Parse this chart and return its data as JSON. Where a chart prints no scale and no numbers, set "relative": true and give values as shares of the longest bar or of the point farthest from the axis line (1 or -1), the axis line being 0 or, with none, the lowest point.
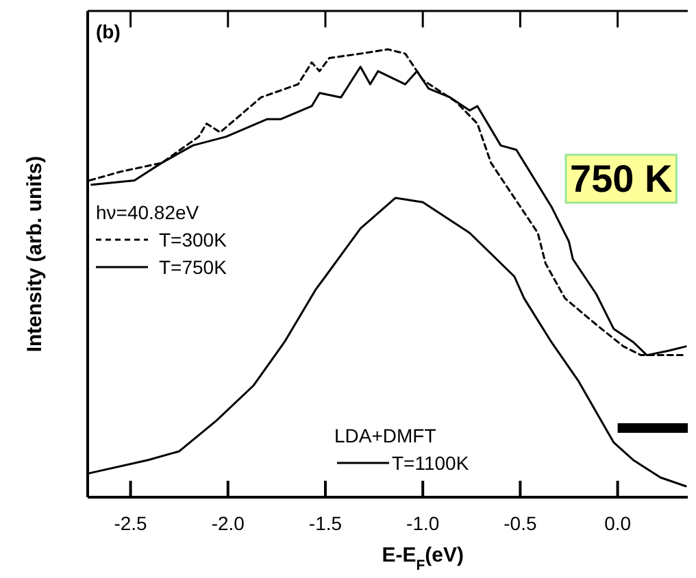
{
  "chart_data": {
    "type": "line",
    "relative": true,
    "xlabel": "E-E$_{F}$(eV)",
    "ylabel": "Intensity (arb. units)",
    "xlim": [
      -2.72,
      0.36
    ],
    "xticks": [
      {
        "value": -2.5,
        "label": "-2.5"
      },
      {
        "value": -2.0,
        "label": "-2.0"
      },
      {
        "value": -1.5,
        "label": "-1.5"
      },
      {
        "value": -1.0,
        "label": "-1.0"
      },
      {
        "value": -0.5,
        "label": "-0.5"
      },
      {
        "value": 0.0,
        "label": "0.0"
      }
    ],
    "legend": "left",
    "legend_title": "hν=40.82eV",
    "annotations": [
      "(b)",
      "750 K",
      "LDA+DMFT"
    ],
    "series": [
      {
        "name": "T=300K",
        "color": "#000000",
        "line_style": "dashed",
        "x": [
          -2.71,
          -2.55,
          -2.34,
          -2.15,
          -2.11,
          -2.04,
          -1.83,
          -1.64,
          -1.57,
          -1.53,
          -1.48,
          -1.32,
          -1.18,
          -1.09,
          -1.0,
          -0.83,
          -0.72,
          -0.65,
          -0.53,
          -0.41,
          -0.37,
          -0.27,
          -0.11,
          0.03,
          0.12,
          0.35
        ],
        "values": [
          0.7,
          0.72,
          0.74,
          0.8,
          0.83,
          0.81,
          0.89,
          0.92,
          0.97,
          0.95,
          0.98,
          0.99,
          1.0,
          0.99,
          0.93,
          0.88,
          0.83,
          0.74,
          0.66,
          0.58,
          0.51,
          0.43,
          0.37,
          0.32,
          0.3,
          0.3
        ]
      },
      {
        "name": "T=750K",
        "color": "#000000",
        "line_style": "solid",
        "x": [
          -2.7,
          -2.48,
          -2.34,
          -2.18,
          -2.01,
          -1.8,
          -1.73,
          -1.57,
          -1.53,
          -1.42,
          -1.32,
          -1.27,
          -1.23,
          -1.09,
          -1.03,
          -0.97,
          -0.86,
          -0.76,
          -0.72,
          -0.6,
          -0.52,
          -0.34,
          -0.25,
          -0.23,
          -0.11,
          -0.02,
          0.08,
          0.15,
          0.26,
          0.35
        ],
        "values": [
          0.69,
          0.7,
          0.74,
          0.78,
          0.8,
          0.84,
          0.84,
          0.87,
          0.9,
          0.89,
          0.96,
          0.92,
          0.95,
          0.92,
          0.95,
          0.91,
          0.89,
          0.86,
          0.87,
          0.78,
          0.77,
          0.64,
          0.56,
          0.52,
          0.44,
          0.36,
          0.33,
          0.3,
          0.31,
          0.32
        ]
      },
      {
        "name": "T=1100K",
        "color": "#000000",
        "line_style": "solid",
        "x": [
          -2.71,
          -2.41,
          -2.25,
          -2.06,
          -1.87,
          -1.71,
          -1.55,
          -1.5,
          -1.32,
          -1.14,
          -1.0,
          -0.76,
          -0.53,
          -0.48,
          -0.34,
          -0.2,
          -0.02,
          0.08,
          0.22,
          0.35
        ],
        "values": [
          0.03,
          0.06,
          0.08,
          0.15,
          0.23,
          0.33,
          0.45,
          0.48,
          0.59,
          0.66,
          0.65,
          0.58,
          0.48,
          0.43,
          0.33,
          0.24,
          0.1,
          0.06,
          0.02,
          0.0
        ]
      }
    ]
  }
}
